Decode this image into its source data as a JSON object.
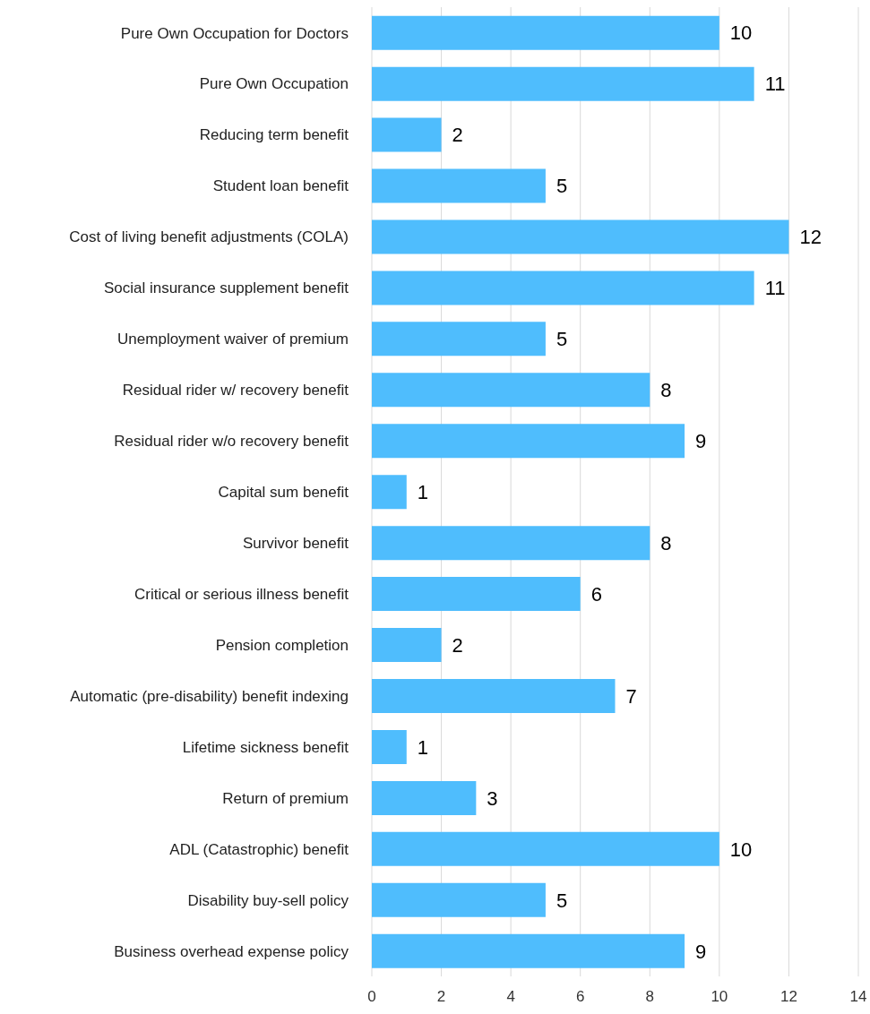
{
  "chart_data": {
    "type": "bar",
    "orientation": "horizontal",
    "categories": [
      "Pure Own Occupation for Doctors",
      "Pure Own Occupation",
      "Reducing term benefit",
      "Student loan benefit",
      "Cost of living benefit adjustments (COLA)",
      "Social insurance supplement benefit",
      "Unemployment waiver of premium",
      "Residual rider w/ recovery benefit",
      "Residual rider w/o recovery benefit",
      "Capital sum benefit",
      "Survivor benefit",
      "Critical or serious illness benefit",
      "Pension completion ",
      "Automatic (pre-disability) benefit indexing",
      "Lifetime sickness benefit",
      "Return of premium",
      "ADL (Catastrophic) benefit",
      "Disability buy-sell policy",
      "Business overhead expense policy"
    ],
    "values": [
      10,
      11,
      2,
      5,
      12,
      11,
      5,
      8,
      9,
      1,
      8,
      6,
      2,
      7,
      1,
      3,
      10,
      5,
      9
    ],
    "color": "#4fbdfd",
    "xlim": [
      0,
      14
    ],
    "xticks": [
      0,
      2,
      4,
      6,
      8,
      10,
      12,
      14
    ],
    "grid": "x",
    "data_labels": true
  }
}
